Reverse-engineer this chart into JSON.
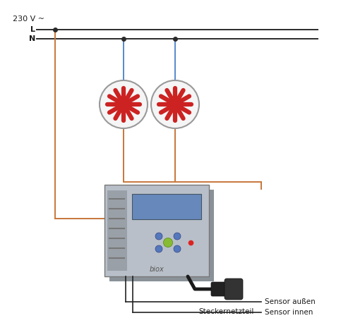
{
  "bg_color": "#ffffff",
  "line_color_black": "#2a2a2a",
  "line_color_orange": "#c8763a",
  "line_color_blue": "#5588cc",
  "line_color_dark": "#222222",
  "text_color": "#1a1a1a",
  "voltage_label": "230 V ~",
  "L_label": "L",
  "N_label": "N",
  "stecker_label": "Steckernetzteil",
  "sensor_aussen": "Sensor außen",
  "sensor_innen": "Sensor innen",
  "device_color": "#b8bfc8",
  "device_shadow": "#8a9298",
  "device_darker": "#9aa0a8",
  "screen_color": "#6688bb",
  "fan_bg": "#f5f5f5",
  "fan_red": "#cc2222",
  "fan_edge": "#999999",
  "plug_color": "#1a1a1a",
  "figw": 5.0,
  "figh": 4.68,
  "dpi": 100
}
